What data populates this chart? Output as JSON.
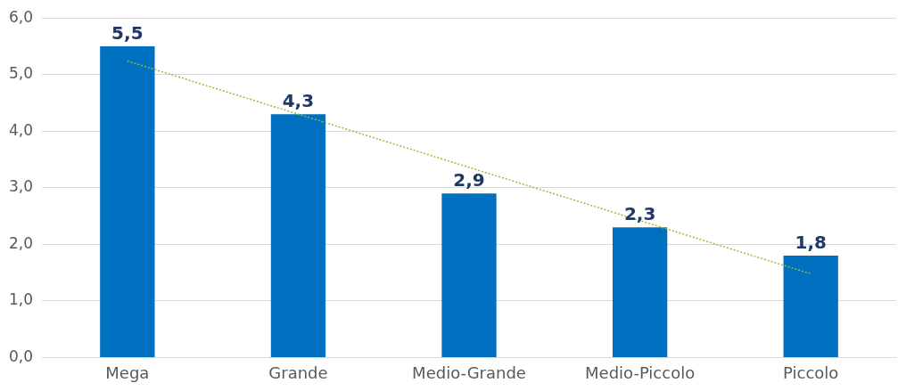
{
  "chart_data": {
    "type": "bar",
    "categories": [
      "Mega",
      "Grande",
      "Medio-Grande",
      "Medio-Piccolo",
      "Piccolo"
    ],
    "series": [
      {
        "color": "#0070c0",
        "values": [
          5.5,
          4.3,
          2.9,
          2.3,
          1.8
        ],
        "value_labels": [
          "5,5",
          "4,3",
          "2,9",
          "2,3",
          "1,8"
        ]
      },
      {
        "type": "line",
        "color": "#9bbb30",
        "line_style": "dotted",
        "marker": "none",
        "x": [
          "Mega",
          "Grande",
          "Medio-Grande",
          "Medio-Piccolo",
          "Piccolo"
        ],
        "values": [
          5.24,
          4.3,
          3.36,
          2.42,
          1.48
        ]
      }
    ],
    "ylim": [
      0,
      6
    ],
    "yticks": [
      {
        "value": 0,
        "label": "0,0"
      },
      {
        "value": 1,
        "label": "1,0"
      },
      {
        "value": 2,
        "label": "2,0"
      },
      {
        "value": 3,
        "label": "3,0"
      },
      {
        "value": 4,
        "label": "4,0"
      },
      {
        "value": 5,
        "label": "5,0"
      },
      {
        "value": 6,
        "label": "6,0"
      }
    ],
    "grid": "y",
    "legend": false
  }
}
